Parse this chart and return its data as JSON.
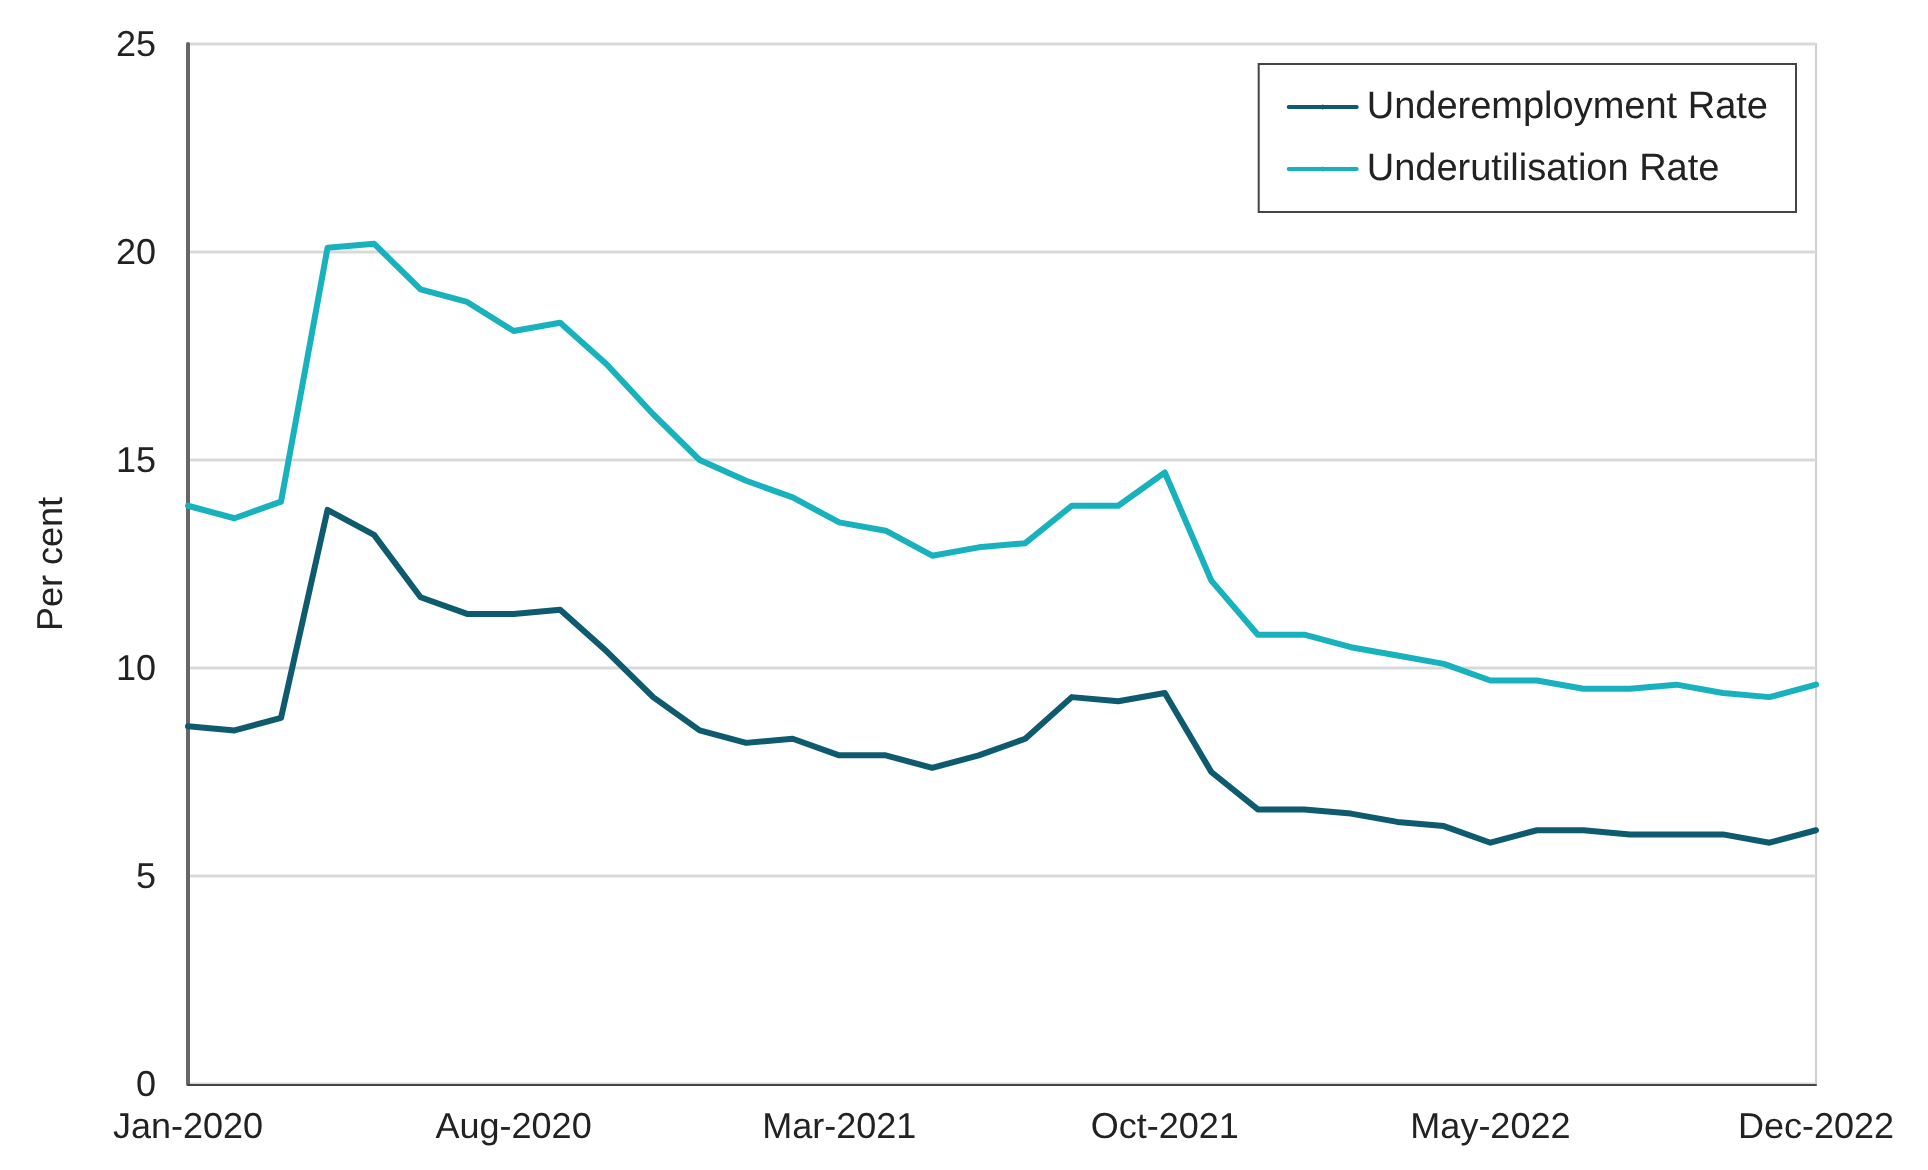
{
  "chart_data": {
    "type": "line",
    "ylabel": "Per cent",
    "categories": [
      "Jan-2020",
      null,
      null,
      null,
      null,
      null,
      null,
      "Aug-2020",
      null,
      null,
      null,
      null,
      null,
      null,
      "Mar-2021",
      null,
      null,
      null,
      null,
      null,
      null,
      "Oct-2021",
      null,
      null,
      null,
      null,
      null,
      null,
      "May-2022",
      null,
      null,
      null,
      null,
      null,
      null,
      "Dec-2022"
    ],
    "series": [
      {
        "name": "Underemployment Rate",
        "color": "#0e5a6e",
        "values": [
          8.6,
          8.5,
          8.8,
          13.8,
          13.2,
          11.7,
          11.3,
          11.3,
          11.4,
          10.4,
          9.3,
          8.5,
          8.2,
          8.3,
          7.9,
          7.9,
          7.6,
          7.9,
          8.3,
          9.3,
          9.2,
          9.4,
          7.5,
          6.6,
          6.6,
          6.5,
          6.3,
          6.2,
          5.8,
          6.1,
          6.1,
          6.0,
          6.0,
          6.0,
          5.8,
          6.1
        ]
      },
      {
        "name": "Underutilisation Rate",
        "color": "#17b2bd",
        "values": [
          13.9,
          13.6,
          14.0,
          20.1,
          20.2,
          19.1,
          18.8,
          18.1,
          18.3,
          17.3,
          16.1,
          15.0,
          14.5,
          14.1,
          13.5,
          13.3,
          12.7,
          12.9,
          13.0,
          13.9,
          13.9,
          14.7,
          12.1,
          10.8,
          10.8,
          10.5,
          10.3,
          10.1,
          9.7,
          9.7,
          9.5,
          9.5,
          9.6,
          9.4,
          9.3,
          9.6
        ]
      }
    ],
    "ylim": [
      0,
      25
    ],
    "yticks": [
      0,
      5,
      10,
      15,
      20,
      25
    ],
    "grid": "y",
    "legend": "top right",
    "marker": "none",
    "line_style": "solid"
  }
}
